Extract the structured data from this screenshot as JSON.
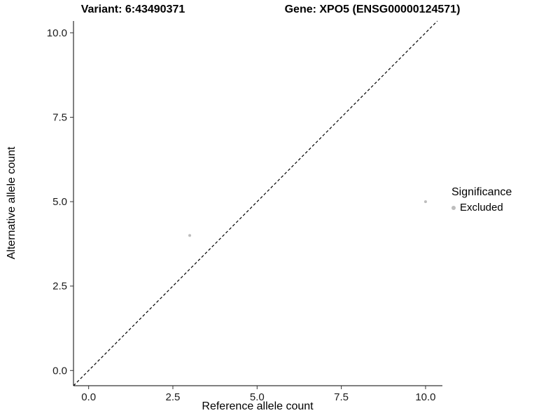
{
  "chart_data": {
    "type": "scatter",
    "title_left": "Variant: 6:43490371",
    "title_right": "Gene: XPO5 (ENSG00000124571)",
    "xlabel": "Reference allele count",
    "ylabel": "Alternative allele count",
    "xlim": [
      -0.45,
      10.5
    ],
    "ylim": [
      -0.45,
      10.35
    ],
    "x_ticks": {
      "values": [
        0,
        2.5,
        5,
        7.5,
        10
      ],
      "labels": [
        "0.0",
        "2.5",
        "5.0",
        "7.5",
        "10.0"
      ]
    },
    "y_ticks": {
      "values": [
        0,
        2.5,
        5,
        7.5,
        10
      ],
      "labels": [
        "0.0",
        "2.5",
        "5.0",
        "7.5",
        "10.0"
      ]
    },
    "grid": false,
    "reference_line": {
      "type": "identity",
      "style": "dashed",
      "color": "#000000"
    },
    "series": [
      {
        "name": "Excluded",
        "color": "#bdbdbd",
        "points": [
          {
            "x": 3,
            "y": 4
          },
          {
            "x": 10,
            "y": 5
          }
        ]
      }
    ],
    "legend": {
      "title": "Significance",
      "position": "right",
      "items": [
        {
          "label": "Excluded",
          "color": "#bdbdbd"
        }
      ]
    }
  }
}
